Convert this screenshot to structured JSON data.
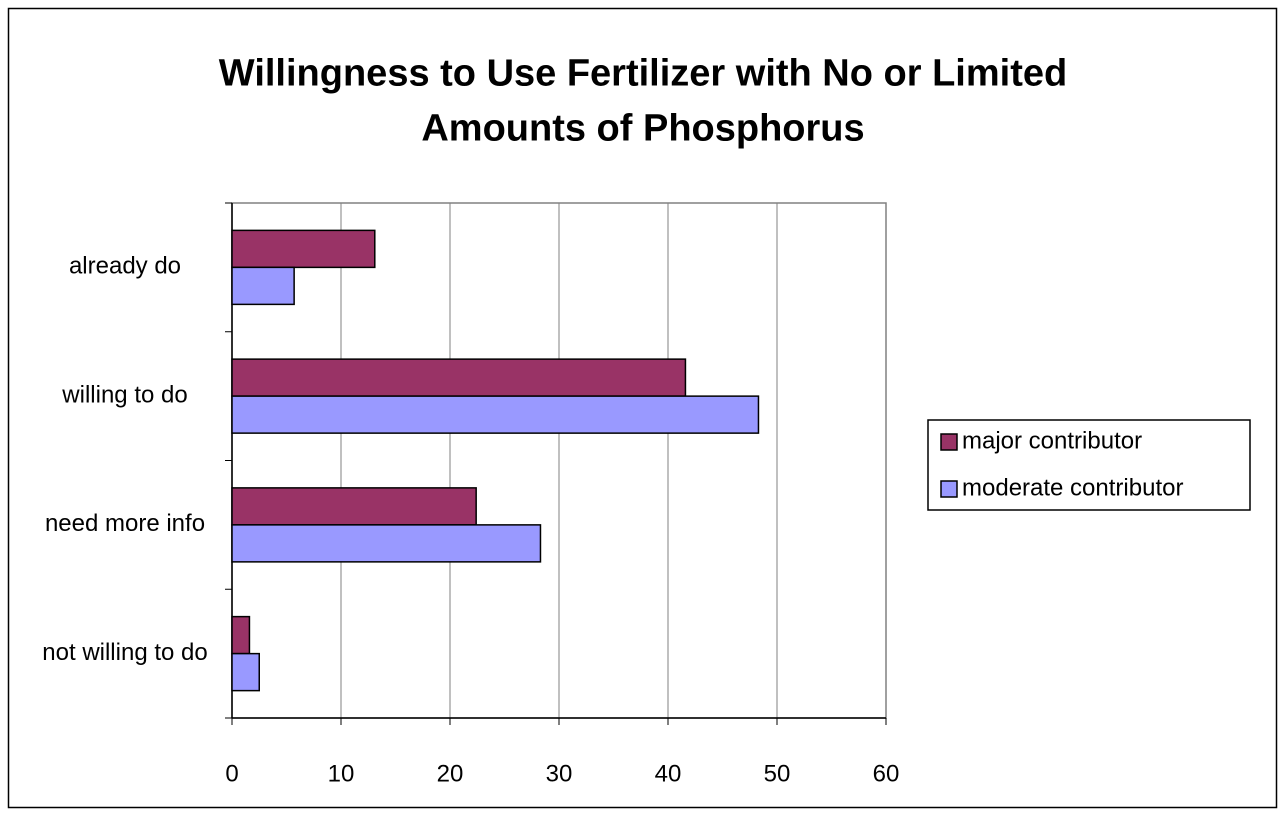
{
  "chart_data": {
    "type": "hbar",
    "title": "Willingness to Use Fertilizer with No or Limited Amounts of Phosphorus",
    "categories": [
      "already do",
      "willing to do",
      "need more info",
      "not willing to do"
    ],
    "series": [
      {
        "name": "major contributor",
        "color": "#993366",
        "values": [
          13.1,
          41.6,
          22.4,
          1.6
        ]
      },
      {
        "name": "moderate contributor",
        "color": "#9999ff",
        "values": [
          5.7,
          48.3,
          28.3,
          2.5
        ]
      }
    ],
    "xlim": [
      0,
      60
    ],
    "xticks": [
      0,
      10,
      20,
      30,
      40,
      50,
      60
    ],
    "grid": true,
    "legend": "right"
  }
}
